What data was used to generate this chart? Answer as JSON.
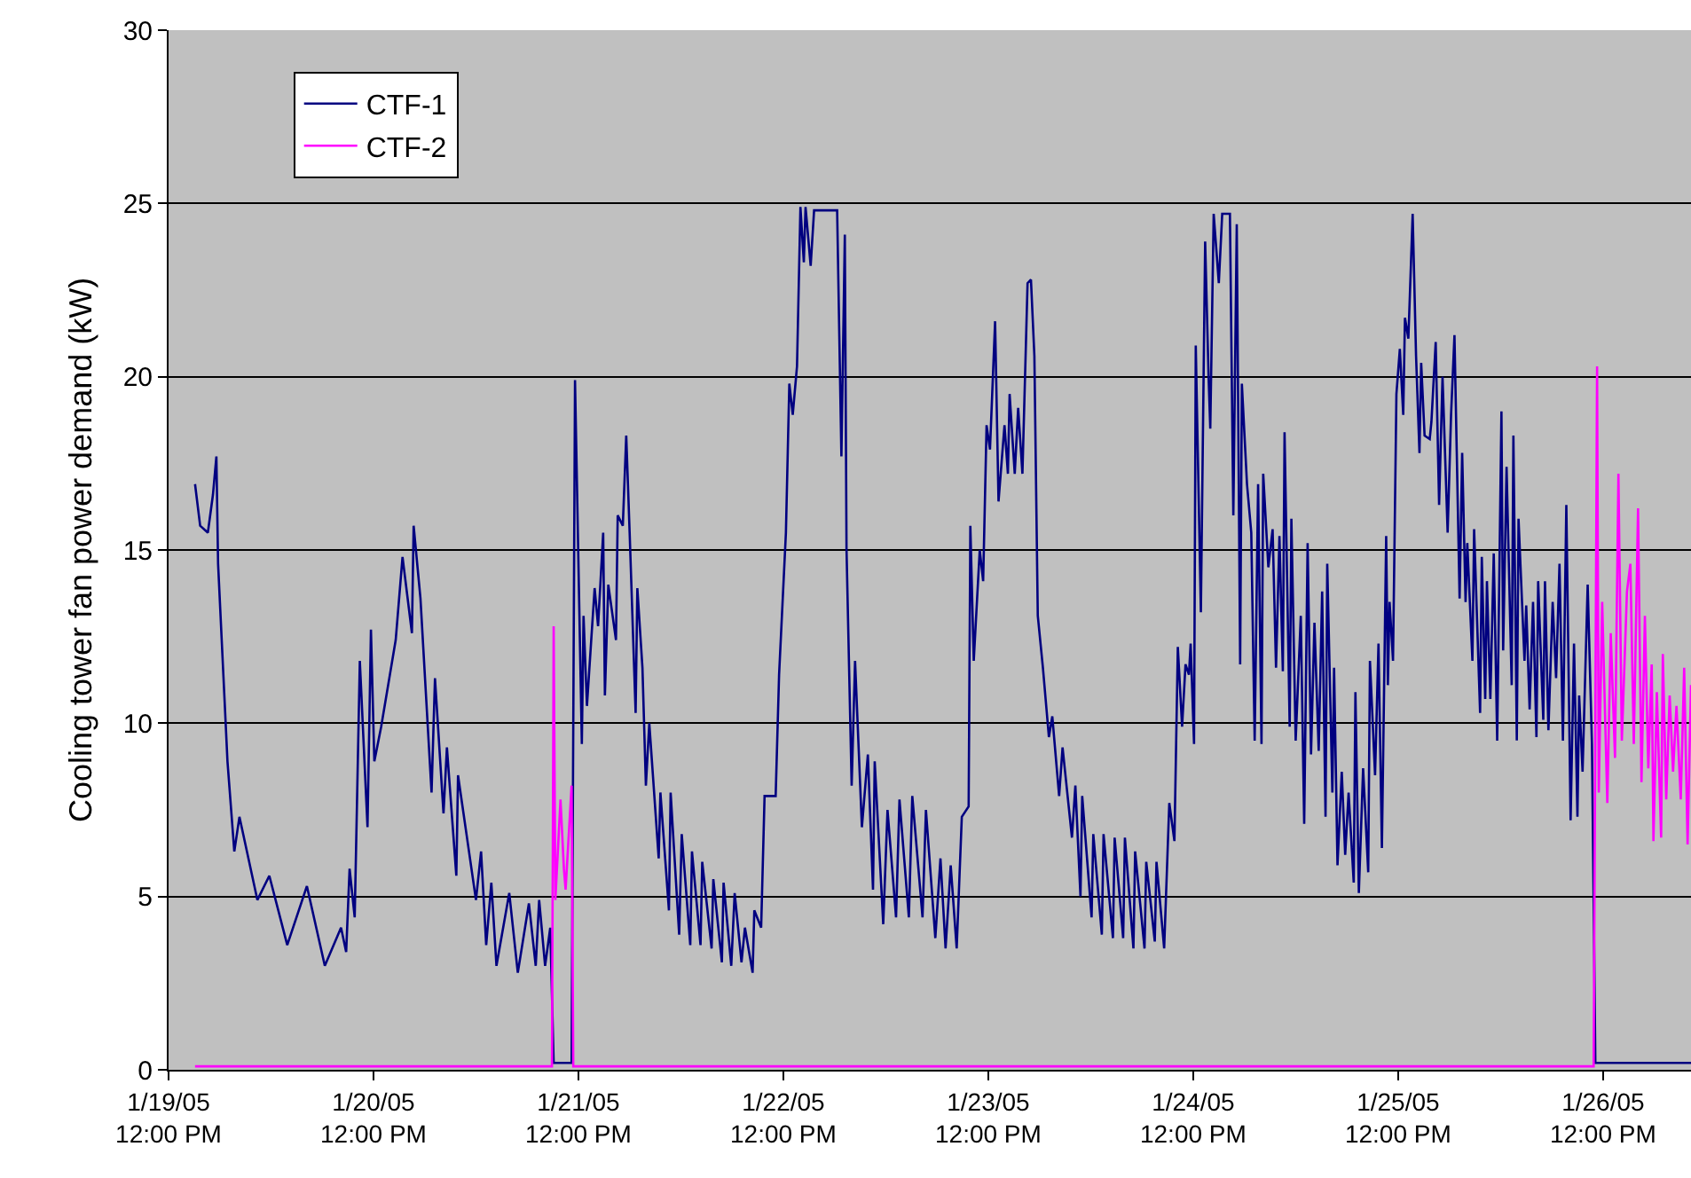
{
  "chart_data": {
    "type": "line",
    "ylabel": "Cooling tower fan power demand (kW)",
    "xlim": [
      "--01-19T12:00",
      "--01-26T22:18"
    ],
    "xticks": [
      {
        "value": "--01-19T12:00",
        "label": "1/19/05\n12:00 PM"
      },
      {
        "value": "--01-20T12:00",
        "label": "1/20/05\n12:00 PM"
      },
      {
        "value": "--01-21T12:00",
        "label": "1/21/05\n12:00 PM"
      },
      {
        "value": "--01-22T12:00",
        "label": "1/22/05\n12:00 PM"
      },
      {
        "value": "--01-23T12:00",
        "label": "1/23/05\n12:00 PM"
      },
      {
        "value": "--01-24T12:00",
        "label": "1/24/05\n12:00 PM"
      },
      {
        "value": "--01-25T12:00",
        "label": "1/25/05\n12:00 PM"
      },
      {
        "value": "--01-26T12:00",
        "label": "1/26/05\n12:00 PM"
      }
    ],
    "ylim": [
      0,
      30
    ],
    "yticks": [
      0,
      5,
      10,
      15,
      20,
      25,
      30
    ],
    "grid": "y",
    "legend": "top left",
    "marker": "none",
    "line_style": "solid",
    "series": [
      {
        "name": "CTF-1",
        "color": "#000080",
        "x": [
          "--01-19T15:06",
          "--01-19T15:42",
          "--01-19T16:36",
          "--01-19T17:12",
          "--01-19T17:36",
          "--01-19T17:48",
          "--01-19T18:54",
          "--01-19T19:42",
          "--01-19T20:18",
          "--01-19T22:24",
          "--01-19T23:48",
          "--01-20T01:54",
          "--01-20T04:12",
          "--01-20T06:18",
          "--01-20T08:12",
          "--01-20T08:48",
          "--01-20T09:12",
          "--01-20T09:48",
          "--01-20T10:24",
          "--01-20T11:18",
          "--01-20T11:42",
          "--01-20T12:06",
          "--01-20T12:54",
          "--01-20T14:36",
          "--01-20T15:24",
          "--01-20T16:30",
          "--01-20T16:42",
          "--01-20T17:30",
          "--01-20T18:48",
          "--01-20T19:12",
          "--01-20T20:12",
          "--01-20T20:36",
          "--01-20T21:42",
          "--01-20T21:54",
          "--01-21T00:00",
          "--01-21T00:36",
          "--01-21T01:12",
          "--01-21T01:48",
          "--01-21T02:24",
          "--01-21T03:54",
          "--01-21T04:54",
          "--01-21T06:12",
          "--01-21T07:00",
          "--01-21T07:24",
          "--01-21T08:06",
          "--01-21T08:42",
          "--01-21T09:06",
          "--01-21T11:12",
          "--01-21T11:36",
          "--01-21T12:24",
          "--01-21T12:36",
          "--01-21T13:00",
          "--01-21T13:30",
          "--01-21T13:54",
          "--01-21T14:18",
          "--01-21T14:54",
          "--01-21T15:06",
          "--01-21T15:30",
          "--01-21T16:24",
          "--01-21T16:36",
          "--01-21T17:12",
          "--01-21T17:36",
          "--01-21T18:00",
          "--01-21T18:42",
          "--01-21T18:54",
          "--01-21T19:30",
          "--01-21T19:54",
          "--01-21T20:18",
          "--01-21T21:24",
          "--01-21T21:36",
          "--01-21T22:36",
          "--01-21T22:48",
          "--01-21T23:48",
          "--01-22T00:06",
          "--01-22T01:06",
          "--01-22T01:18",
          "--01-22T02:18",
          "--01-22T02:30",
          "--01-22T03:36",
          "--01-22T03:48",
          "--01-22T04:48",
          "--01-22T05:00",
          "--01-22T05:54",
          "--01-22T06:18",
          "--01-22T07:06",
          "--01-22T07:30",
          "--01-22T08:24",
          "--01-22T08:36",
          "--01-22T09:24",
          "--01-22T09:48",
          "--01-22T11:06",
          "--01-22T11:30",
          "--01-22T12:18",
          "--01-22T12:42",
          "--01-22T13:06",
          "--01-22T13:36",
          "--01-22T14:00",
          "--01-22T14:24",
          "--01-22T14:36",
          "--01-22T15:12",
          "--01-22T15:36",
          "--01-22T18:18",
          "--01-22T18:48",
          "--01-22T19:12",
          "--01-22T19:24",
          "--01-22T20:00",
          "--01-22T20:24",
          "--01-22T21:12",
          "--01-22T21:54",
          "--01-22T22:30",
          "--01-22T22:42",
          "--01-22T23:42",
          "--01-23T00:12",
          "--01-23T01:12",
          "--01-23T01:36",
          "--01-23T02:42",
          "--01-23T03:06",
          "--01-23T04:18",
          "--01-23T04:42",
          "--01-23T05:48",
          "--01-23T06:24",
          "--01-23T07:00",
          "--01-23T07:36",
          "--01-23T08:18",
          "--01-23T08:54",
          "--01-23T09:42",
          "--01-23T09:54",
          "--01-23T10:18",
          "--01-23T11:00",
          "--01-23T11:24",
          "--01-23T11:48",
          "--01-23T12:12",
          "--01-23T12:48",
          "--01-23T13:12",
          "--01-23T13:54",
          "--01-23T14:18",
          "--01-23T14:30",
          "--01-23T15:06",
          "--01-23T15:30",
          "--01-23T16:00",
          "--01-23T16:36",
          "--01-23T17:00",
          "--01-23T17:24",
          "--01-23T17:48",
          "--01-23T18:24",
          "--01-23T19:06",
          "--01-23T19:30",
          "--01-23T20:18",
          "--01-23T20:42",
          "--01-23T21:48",
          "--01-23T22:12",
          "--01-23T22:48",
          "--01-23T23:00",
          "--01-24T00:06",
          "--01-24T00:18",
          "--01-24T01:18",
          "--01-24T01:30",
          "--01-24T02:36",
          "--01-24T02:48",
          "--01-24T03:48",
          "--01-24T04:00",
          "--01-24T05:00",
          "--01-24T05:12",
          "--01-24T06:18",
          "--01-24T06:30",
          "--01-24T07:30",
          "--01-24T07:42",
          "--01-24T08:36",
          "--01-24T09:12",
          "--01-24T09:48",
          "--01-24T10:12",
          "--01-24T10:42",
          "--01-24T11:06",
          "--01-24T11:30",
          "--01-24T11:42",
          "--01-24T12:06",
          "--01-24T12:18",
          "--01-24T12:54",
          "--01-24T13:24",
          "--01-24T13:48",
          "--01-24T14:00",
          "--01-24T14:24",
          "--01-24T15:00",
          "--01-24T15:24",
          "--01-24T16:18",
          "--01-24T16:42",
          "--01-24T17:06",
          "--01-24T17:30",
          "--01-24T17:42",
          "--01-24T18:18",
          "--01-24T18:48",
          "--01-24T19:12",
          "--01-24T19:36",
          "--01-24T20:00",
          "--01-24T20:12",
          "--01-24T20:48",
          "--01-24T21:18",
          "--01-24T21:42",
          "--01-24T22:06",
          "--01-24T22:30",
          "--01-24T22:42",
          "--01-24T23:18",
          "--01-24T23:30",
          "--01-25T00:00",
          "--01-25T00:36",
          "--01-25T01:00",
          "--01-25T01:24",
          "--01-25T01:48",
          "--01-25T02:12",
          "--01-25T02:42",
          "--01-25T03:06",
          "--01-25T03:30",
          "--01-25T03:42",
          "--01-25T04:18",
          "--01-25T04:30",
          "--01-25T04:54",
          "--01-25T05:24",
          "--01-25T05:48",
          "--01-25T06:12",
          "--01-25T06:48",
          "--01-25T07:00",
          "--01-25T07:24",
          "--01-25T07:54",
          "--01-25T08:30",
          "--01-25T08:42",
          "--01-25T09:18",
          "--01-25T09:42",
          "--01-25T10:06",
          "--01-25T10:36",
          "--01-25T10:48",
          "--01-25T11:00",
          "--01-25T11:24",
          "--01-25T11:48",
          "--01-25T12:12",
          "--01-25T12:36",
          "--01-25T12:48",
          "--01-25T13:12",
          "--01-25T13:42",
          "--01-25T14:06",
          "--01-25T14:30",
          "--01-25T14:42",
          "--01-25T15:06",
          "--01-25T15:42",
          "--01-25T15:54",
          "--01-25T16:24",
          "--01-25T16:48",
          "--01-25T17:12",
          "--01-25T17:48",
          "--01-25T18:12",
          "--01-25T18:36",
          "--01-25T19:12",
          "--01-25T19:30",
          "--01-25T19:54",
          "--01-25T20:06",
          "--01-25T20:42",
          "--01-25T20:54",
          "--01-25T21:36",
          "--01-25T21:48",
          "--01-25T22:12",
          "--01-25T22:24",
          "--01-25T22:48",
          "--01-25T23:12",
          "--01-25T23:36",
          "--01-26T00:06",
          "--01-26T00:18",
          "--01-26T00:42",
          "--01-26T01:18",
          "--01-26T01:30",
          "--01-26T01:54",
          "--01-26T02:06",
          "--01-26T02:48",
          "--01-26T03:00",
          "--01-26T03:24",
          "--01-26T03:48",
          "--01-26T04:12",
          "--01-26T04:24",
          "--01-26T05:00",
          "--01-26T05:12",
          "--01-26T05:36",
          "--01-26T06:06",
          "--01-26T06:30",
          "--01-26T06:54",
          "--01-26T07:18",
          "--01-26T07:42",
          "--01-26T08:12",
          "--01-26T08:36",
          "--01-26T09:00",
          "--01-26T09:12",
          "--01-26T09:36",
          "--01-26T10:12",
          "--01-26T10:42",
          "--01-26T11:06",
          "--01-26T22:18"
        ],
        "values": [
          16.9,
          15.7,
          15.5,
          16.6,
          17.7,
          14.6,
          8.9,
          6.3,
          7.3,
          4.9,
          5.6,
          3.6,
          5.3,
          3.0,
          4.1,
          3.4,
          5.8,
          4.4,
          11.8,
          7.0,
          12.7,
          8.9,
          9.9,
          12.4,
          14.8,
          12.6,
          15.7,
          13.6,
          8.0,
          11.3,
          7.4,
          9.3,
          5.6,
          8.5,
          4.9,
          6.3,
          3.6,
          5.4,
          3.0,
          5.1,
          2.8,
          4.8,
          3.0,
          4.9,
          3.0,
          4.1,
          0.2,
          0.2,
          19.9,
          9.4,
          13.1,
          10.5,
          12.4,
          13.9,
          12.8,
          15.5,
          10.8,
          14.0,
          12.4,
          16.0,
          15.7,
          18.3,
          15.5,
          10.3,
          13.9,
          11.6,
          8.2,
          10.0,
          6.1,
          8.0,
          4.6,
          8.0,
          3.9,
          6.8,
          3.6,
          6.3,
          3.6,
          6.0,
          3.5,
          5.5,
          3.1,
          5.4,
          3.0,
          5.1,
          3.1,
          4.1,
          2.8,
          4.6,
          4.1,
          7.9,
          7.9,
          11.4,
          15.5,
          19.8,
          18.9,
          20.3,
          24.9,
          23.3,
          24.9,
          23.2,
          24.8,
          24.8,
          17.7,
          24.1,
          15.0,
          8.2,
          11.8,
          7.0,
          9.1,
          5.2,
          8.9,
          4.2,
          7.5,
          4.4,
          7.8,
          4.4,
          7.9,
          4.4,
          7.5,
          3.8,
          6.1,
          3.5,
          5.9,
          3.5,
          7.3,
          7.6,
          15.7,
          11.8,
          15.0,
          14.1,
          18.6,
          17.9,
          21.6,
          16.4,
          18.6,
          17.2,
          19.5,
          17.2,
          19.1,
          17.2,
          22.7,
          22.8,
          20.6,
          13.1,
          11.6,
          9.6,
          10.2,
          7.9,
          9.3,
          6.7,
          8.2,
          5.0,
          7.9,
          4.4,
          6.8,
          3.9,
          6.8,
          3.8,
          6.7,
          3.8,
          6.7,
          3.5,
          6.3,
          3.5,
          6.0,
          3.7,
          6.0,
          3.5,
          7.7,
          6.6,
          12.2,
          9.9,
          11.7,
          11.4,
          12.3,
          9.4,
          20.9,
          13.2,
          23.9,
          20.0,
          18.5,
          24.7,
          22.7,
          24.7,
          24.7,
          16.0,
          24.4,
          11.7,
          19.8,
          16.9,
          15.5,
          9.5,
          16.9,
          9.4,
          17.2,
          14.5,
          15.6,
          11.6,
          15.4,
          11.5,
          18.4,
          9.9,
          15.9,
          9.5,
          13.1,
          7.1,
          15.2,
          9.1,
          12.9,
          9.2,
          13.8,
          7.3,
          14.6,
          8.0,
          11.6,
          5.9,
          8.6,
          6.2,
          8.0,
          5.4,
          10.9,
          5.1,
          8.7,
          5.7,
          11.8,
          8.5,
          12.3,
          6.4,
          15.4,
          11.1,
          13.5,
          11.8,
          19.5,
          20.8,
          18.9,
          21.7,
          21.1,
          24.7,
          20.6,
          17.8,
          20.4,
          18.3,
          18.2,
          18.7,
          21.0,
          16.3,
          20.0,
          15.5,
          18.9,
          21.2,
          13.6,
          17.8,
          13.5,
          15.2,
          11.8,
          15.6,
          10.3,
          14.8,
          10.7,
          14.1,
          10.7,
          14.9,
          9.5,
          19.0,
          12.1,
          17.4,
          11.1,
          18.3,
          9.5,
          15.9,
          11.8,
          13.4,
          10.4,
          13.5,
          9.6,
          14.1,
          10.1,
          14.1,
          9.8,
          13.5,
          11.3,
          14.6,
          9.5,
          16.3,
          7.2,
          12.3,
          7.3,
          10.8,
          8.6,
          14.0,
          9.4,
          0.2,
          0.2
        ]
      },
      {
        "name": "CTF-2",
        "color": "#ff00ff",
        "x": [
          "--01-19T15:06",
          "--01-21T08:54",
          "--01-21T09:06",
          "--01-21T09:18",
          "--01-21T09:54",
          "--01-21T10:18",
          "--01-21T10:30",
          "--01-21T11:12",
          "--01-21T11:24",
          "--01-26T10:54",
          "--01-26T11:18",
          "--01-26T11:30",
          "--01-26T11:54",
          "--01-26T12:30",
          "--01-26T12:54",
          "--01-26T13:24",
          "--01-26T13:48",
          "--01-26T14:12",
          "--01-26T14:48",
          "--01-26T15:12",
          "--01-26T15:36",
          "--01-26T16:06",
          "--01-26T16:30",
          "--01-26T16:54",
          "--01-26T17:18",
          "--01-26T17:42",
          "--01-26T17:54",
          "--01-26T18:18",
          "--01-26T18:48",
          "--01-26T19:00",
          "--01-26T19:24",
          "--01-26T19:48",
          "--01-26T20:12",
          "--01-26T20:36",
          "--01-26T21:06",
          "--01-26T21:30",
          "--01-26T21:54",
          "--01-26T22:18"
        ],
        "values": [
          0.1,
          0.1,
          12.8,
          4.9,
          7.8,
          5.8,
          5.2,
          8.2,
          0.1,
          0.1,
          20.3,
          8.0,
          13.5,
          7.7,
          12.6,
          9.0,
          17.2,
          9.5,
          13.8,
          14.6,
          9.4,
          16.2,
          8.3,
          13.1,
          8.7,
          11.7,
          6.6,
          10.9,
          6.7,
          12.0,
          7.8,
          10.8,
          8.6,
          10.5,
          7.8,
          11.6,
          6.5,
          11.1
        ]
      }
    ]
  }
}
